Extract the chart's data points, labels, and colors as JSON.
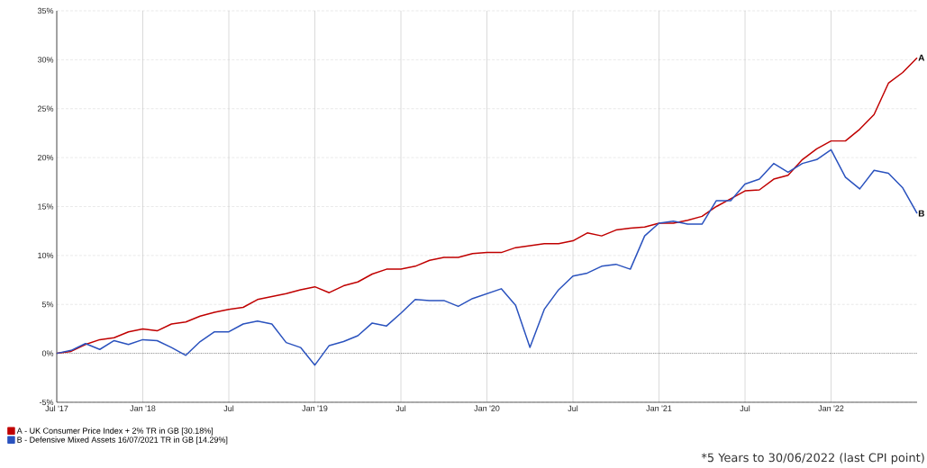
{
  "chart_data": {
    "type": "line",
    "x": [
      "2017-07",
      "2017-08",
      "2017-09",
      "2017-10",
      "2017-11",
      "2017-12",
      "2018-01",
      "2018-02",
      "2018-03",
      "2018-04",
      "2018-05",
      "2018-06",
      "2018-07",
      "2018-08",
      "2018-09",
      "2018-10",
      "2018-11",
      "2018-12",
      "2019-01",
      "2019-02",
      "2019-03",
      "2019-04",
      "2019-05",
      "2019-06",
      "2019-07",
      "2019-08",
      "2019-09",
      "2019-10",
      "2019-11",
      "2019-12",
      "2020-01",
      "2020-02",
      "2020-03",
      "2020-04",
      "2020-05",
      "2020-06",
      "2020-07",
      "2020-08",
      "2020-09",
      "2020-10",
      "2020-11",
      "2020-12",
      "2021-01",
      "2021-02",
      "2021-03",
      "2021-04",
      "2021-05",
      "2021-06",
      "2021-07",
      "2021-08",
      "2021-09",
      "2021-10",
      "2021-11",
      "2021-12",
      "2022-01",
      "2022-02",
      "2022-03",
      "2022-04",
      "2022-05",
      "2022-06",
      "2022-07"
    ],
    "series": [
      {
        "name": "A - UK Consumer Price Index + 2% TR in GB [30.18%]",
        "color": "#c00000",
        "values": [
          0,
          0.2,
          0.9,
          1.4,
          1.6,
          2.2,
          2.5,
          2.3,
          3.0,
          3.2,
          3.8,
          4.2,
          4.5,
          4.7,
          5.5,
          5.8,
          6.1,
          6.5,
          6.8,
          6.2,
          6.9,
          7.3,
          8.1,
          8.6,
          8.6,
          8.9,
          9.5,
          9.8,
          9.8,
          10.2,
          10.3,
          10.3,
          10.8,
          11.0,
          11.2,
          11.2,
          11.5,
          12.3,
          12.0,
          12.6,
          12.8,
          12.9,
          13.3,
          13.3,
          13.6,
          14.0,
          15.0,
          15.8,
          16.6,
          16.7,
          17.8,
          18.2,
          19.8,
          20.9,
          21.7,
          21.7,
          22.9,
          24.4,
          27.6,
          28.7,
          30.2
        ]
      },
      {
        "name": "B - Defensive Mixed Assets 16/07/2021 TR in GB [14.29%]",
        "color": "#2a52be",
        "values": [
          0,
          0.3,
          1.0,
          0.4,
          1.3,
          0.9,
          1.4,
          1.3,
          0.6,
          -0.2,
          1.2,
          2.2,
          2.2,
          3.0,
          3.3,
          3.0,
          1.1,
          0.6,
          -1.2,
          0.8,
          1.2,
          1.8,
          3.1,
          2.8,
          4.1,
          5.5,
          5.4,
          5.4,
          4.8,
          5.6,
          6.1,
          6.6,
          4.9,
          0.6,
          4.5,
          6.5,
          7.9,
          8.2,
          8.9,
          9.1,
          8.6,
          12.0,
          13.3,
          13.5,
          13.2,
          13.2,
          15.6,
          15.6,
          17.3,
          17.8,
          19.4,
          18.5,
          19.4,
          19.8,
          20.8,
          18.0,
          16.8,
          18.7,
          18.4,
          16.9,
          14.3
        ]
      }
    ],
    "xlim": [
      "2017-07",
      "2022-07"
    ],
    "xticks": [
      {
        "value": "2017-07",
        "label": "Jul '17"
      },
      {
        "value": "2018-01",
        "label": "Jan '18"
      },
      {
        "value": "2018-07",
        "label": "Jul"
      },
      {
        "value": "2019-01",
        "label": "Jan '19"
      },
      {
        "value": "2019-07",
        "label": "Jul"
      },
      {
        "value": "2020-01",
        "label": "Jan '20"
      },
      {
        "value": "2020-07",
        "label": "Jul"
      },
      {
        "value": "2021-01",
        "label": "Jan '21"
      },
      {
        "value": "2021-07",
        "label": "Jul"
      },
      {
        "value": "2022-01",
        "label": "Jan '22"
      }
    ],
    "ylim": [
      -5,
      35
    ],
    "yticks": [
      {
        "value": -5,
        "label": "-5%"
      },
      {
        "value": 0,
        "label": "0%"
      },
      {
        "value": 5,
        "label": "5%"
      },
      {
        "value": 10,
        "label": "10%"
      },
      {
        "value": 15,
        "label": "15%"
      },
      {
        "value": 20,
        "label": "20%"
      },
      {
        "value": 25,
        "label": "25%"
      },
      {
        "value": 30,
        "label": "30%"
      },
      {
        "value": 35,
        "label": "35%"
      }
    ],
    "grid": true,
    "legend": "bottom left",
    "ref_lines": [
      {
        "axis": "y",
        "value": 0,
        "color": "#000000",
        "line_style": "dotted"
      }
    ],
    "annotations": [
      {
        "text": "A",
        "x": "2022-07",
        "y": 30.2
      },
      {
        "text": "B",
        "x": "2022-07",
        "y": 14.3
      },
      "*5 Years to 30/06/2022 (last CPI point)"
    ]
  }
}
